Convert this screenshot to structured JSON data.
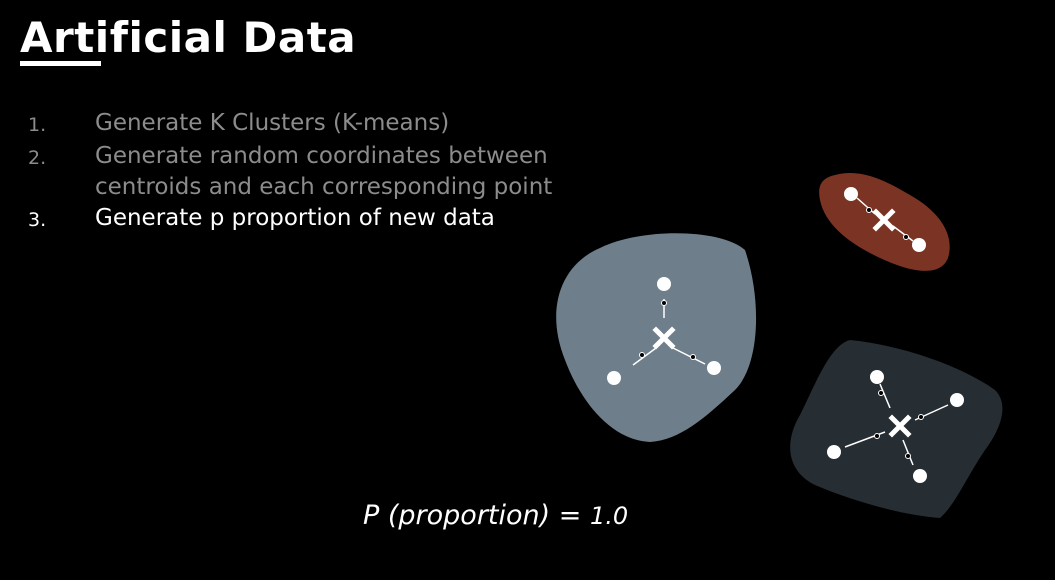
{
  "slide": {
    "title": "Artificial Data",
    "steps": [
      {
        "number": "1.",
        "lines": [
          "Generate K Clusters (K-means)"
        ],
        "state": "dim"
      },
      {
        "number": "2.",
        "lines": [
          "Generate random coordinates between",
          "centroids and each corresponding point"
        ],
        "state": "dim"
      },
      {
        "number": "3.",
        "lines": [
          "Generate p proportion of new data"
        ],
        "state": "active"
      }
    ],
    "formula": {
      "lhs": "P (proportion)",
      "eq": "=",
      "rhs": "1.0"
    }
  },
  "diagram": {
    "clusters": [
      {
        "name": "gray-cluster",
        "color": "#6e7f8b"
      },
      {
        "name": "red-cluster",
        "color": "#7b3424"
      },
      {
        "name": "dark-cluster",
        "color": "#262d33"
      }
    ],
    "centroid_icon": "x-mark-icon",
    "point_icon": "dot-icon"
  }
}
